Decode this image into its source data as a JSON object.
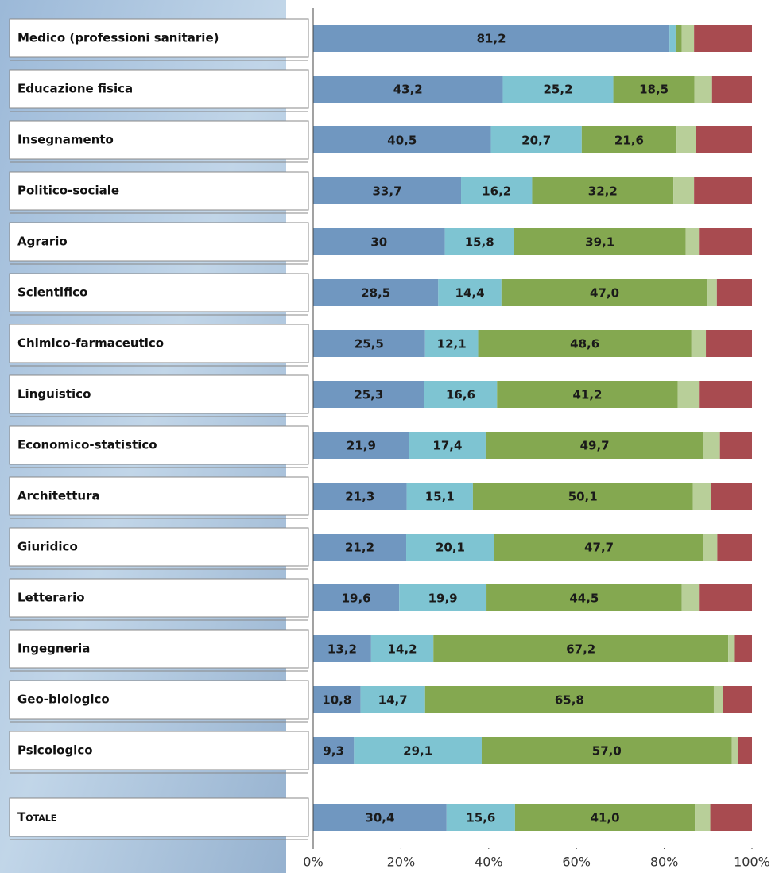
{
  "chart_data": {
    "type": "stacked-bar-horizontal",
    "categories": [
      "Medico (professioni sanitarie)",
      "Educazione fisica",
      "Insegnamento",
      "Politico-sociale",
      "Agrario",
      "Scientifico",
      "Chimico-farmaceutico",
      "Linguistico",
      "Economico-statistico",
      "Architettura",
      "Giuridico",
      "Letterario",
      "Ingegneria",
      "Geo-biologico",
      "Psicologico",
      "Totale"
    ],
    "series": [
      {
        "color": "#7097c0",
        "values": [
          81.2,
          43.2,
          40.5,
          33.7,
          30,
          28.5,
          25.5,
          25.3,
          21.9,
          21.3,
          21.2,
          19.6,
          13.2,
          10.8,
          9.3,
          30.4
        ],
        "value_labels": [
          "81,2",
          "43,2",
          "40,5",
          "33,7",
          "30",
          "28,5",
          "25,5",
          "25,3",
          "21,9",
          "21,3",
          "21,2",
          "19,6",
          "13,2",
          "10,8",
          "9,3",
          "30,4"
        ]
      },
      {
        "color": "#7ec4d2",
        "values": [
          1.4,
          25.2,
          20.7,
          16.2,
          15.8,
          14.4,
          12.1,
          16.6,
          17.4,
          15.1,
          20.1,
          19.9,
          14.2,
          14.7,
          29.1,
          15.6
        ],
        "value_labels": [
          null,
          "25,2",
          "20,7",
          "16,2",
          "15,8",
          "14,4",
          "12,1",
          "16,6",
          "17,4",
          "15,1",
          "20,1",
          "19,9",
          "14,2",
          "14,7",
          "29,1",
          "15,6"
        ]
      },
      {
        "color": "#84a850",
        "values": [
          1.4,
          18.5,
          21.6,
          32.2,
          39.1,
          47.0,
          48.6,
          41.2,
          49.7,
          50.1,
          47.7,
          44.5,
          67.2,
          65.8,
          57.0,
          41.0
        ],
        "value_labels": [
          null,
          "18,5",
          "21,6",
          "32,2",
          "39,1",
          "47,0",
          "48,6",
          "41,2",
          "49,7",
          "50,1",
          "47,7",
          "44,5",
          "67,2",
          "65,8",
          "57,0",
          "41,0"
        ]
      },
      {
        "color": "#b8cf99",
        "values": [
          2.8,
          4.0,
          4.5,
          4.7,
          3.0,
          2.1,
          3.3,
          4.8,
          3.7,
          4.1,
          3.1,
          3.9,
          1.5,
          2.1,
          1.4,
          3.5
        ]
      },
      {
        "color": "#a84b50",
        "values": [
          13.2,
          9.1,
          12.7,
          13.2,
          12.1,
          8.0,
          10.5,
          12.1,
          7.3,
          9.4,
          7.9,
          12.1,
          3.9,
          6.6,
          3.2,
          9.5
        ]
      }
    ],
    "xlim": [
      0,
      100
    ],
    "xticks": [
      {
        "value": 0,
        "label": "0%"
      },
      {
        "value": 20,
        "label": "20%"
      },
      {
        "value": 40,
        "label": "40%"
      },
      {
        "value": 60,
        "label": "60%"
      },
      {
        "value": 80,
        "label": "80%"
      },
      {
        "value": 100,
        "label": "100%"
      }
    ]
  }
}
